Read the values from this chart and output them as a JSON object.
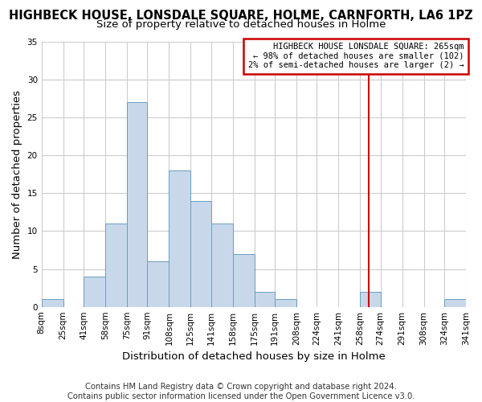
{
  "title": "HIGHBECK HOUSE, LONSDALE SQUARE, HOLME, CARNFORTH, LA6 1PZ",
  "subtitle": "Size of property relative to detached houses in Holme",
  "xlabel": "Distribution of detached houses by size in Holme",
  "ylabel": "Number of detached properties",
  "bin_edges": [
    8,
    25,
    41,
    58,
    75,
    91,
    108,
    125,
    141,
    158,
    175,
    191,
    208,
    224,
    241,
    258,
    274,
    291,
    308,
    324,
    341
  ],
  "bin_counts": [
    1,
    0,
    4,
    11,
    27,
    6,
    18,
    14,
    11,
    7,
    2,
    1,
    0,
    0,
    0,
    2,
    0,
    0,
    0,
    1
  ],
  "bar_color": "#c8d8ea",
  "bar_edge_color": "#6a9ec0",
  "ylim": [
    0,
    35
  ],
  "yticks": [
    0,
    5,
    10,
    15,
    20,
    25,
    30,
    35
  ],
  "xtick_labels": [
    "8sqm",
    "25sqm",
    "41sqm",
    "58sqm",
    "75sqm",
    "91sqm",
    "108sqm",
    "125sqm",
    "141sqm",
    "158sqm",
    "175sqm",
    "191sqm",
    "208sqm",
    "224sqm",
    "241sqm",
    "258sqm",
    "274sqm",
    "291sqm",
    "308sqm",
    "324sqm",
    "341sqm"
  ],
  "marker_value": 265,
  "marker_color": "#cc0000",
  "annotation_title": "HIGHBECK HOUSE LONSDALE SQUARE: 265sqm",
  "annotation_line1": "← 98% of detached houses are smaller (102)",
  "annotation_line2": "2% of semi-detached houses are larger (2) →",
  "annotation_box_color": "#ffffff",
  "annotation_box_edge": "#cc0000",
  "footer1": "Contains HM Land Registry data © Crown copyright and database right 2024.",
  "footer2": "Contains public sector information licensed under the Open Government Licence v3.0.",
  "background_color": "#ffffff",
  "plot_background": "#ffffff",
  "grid_color": "#cccccc",
  "title_fontsize": 10.5,
  "subtitle_fontsize": 9.5,
  "axis_label_fontsize": 9.5,
  "tick_fontsize": 7.5,
  "annotation_fontsize": 7.5,
  "footer_fontsize": 7.2
}
